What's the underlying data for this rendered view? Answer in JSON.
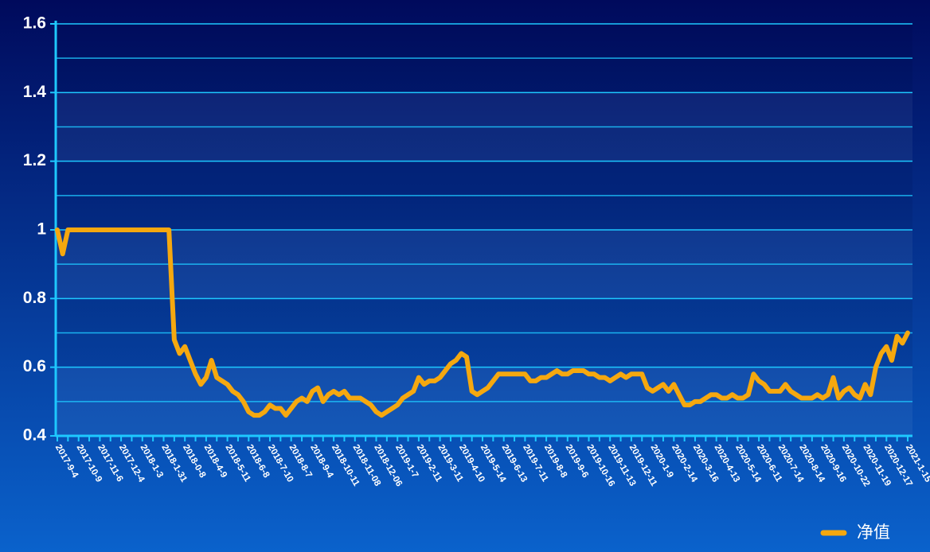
{
  "chart_data": {
    "type": "line",
    "categories": [
      "2017-9-4",
      null,
      null,
      null,
      "2017-10-9",
      null,
      null,
      null,
      "2017-11-6",
      null,
      null,
      null,
      "2017-12-4",
      null,
      null,
      null,
      "2018-1-3",
      null,
      null,
      null,
      "2018-1-31",
      null,
      null,
      null,
      "2018-0-8",
      null,
      null,
      null,
      "2018-4-9",
      null,
      null,
      null,
      "2018-5-11",
      null,
      null,
      null,
      "2018-6-8",
      null,
      null,
      null,
      "2018-7-10",
      null,
      null,
      null,
      "2018-8-7",
      null,
      null,
      null,
      "2018-9-4",
      null,
      null,
      null,
      "2018-10-11",
      null,
      null,
      null,
      "2018-11-08",
      null,
      null,
      null,
      "2018-12-06",
      null,
      null,
      null,
      "2019-1-7",
      null,
      null,
      null,
      "2019-2-11",
      null,
      null,
      null,
      "2019-3-11",
      null,
      null,
      null,
      "2019-4-10",
      null,
      null,
      null,
      "2019-5-14",
      null,
      null,
      null,
      "2019-6-13",
      null,
      null,
      null,
      "2019-7-11",
      null,
      null,
      null,
      "2019-8-8",
      null,
      null,
      null,
      "2019-9-6",
      null,
      null,
      null,
      "2019-10-16",
      null,
      null,
      null,
      "2019-11-13",
      null,
      null,
      null,
      "2019-12-11",
      null,
      null,
      null,
      "2020-1-9",
      null,
      null,
      null,
      "2020-2-14",
      null,
      null,
      null,
      "2020-3-16",
      null,
      null,
      null,
      "2020-4-13",
      null,
      null,
      null,
      "2020-5-14",
      null,
      null,
      null,
      "2020-6-11",
      null,
      null,
      null,
      "2020-7-14",
      null,
      null,
      null,
      "2020-8-14",
      null,
      null,
      null,
      "2020-9-16",
      null,
      null,
      null,
      "2020-10-22",
      null,
      null,
      null,
      "2020-11-19",
      null,
      null,
      null,
      "2020-12-17",
      null,
      null,
      null,
      "2021-1-15"
    ],
    "series": [
      {
        "name": "净值",
        "color": "#f5a80f",
        "values": [
          1.0,
          0.93,
          1.0,
          1.0,
          1.0,
          1.0,
          1.0,
          1.0,
          1.0,
          1.0,
          1.0,
          1.0,
          1.0,
          1.0,
          1.0,
          1.0,
          1.0,
          1.0,
          1.0,
          1.0,
          1.0,
          1.0,
          0.68,
          0.64,
          0.66,
          0.62,
          0.58,
          0.55,
          0.57,
          0.62,
          0.57,
          0.56,
          0.55,
          0.53,
          0.52,
          0.5,
          0.47,
          0.46,
          0.46,
          0.47,
          0.49,
          0.48,
          0.48,
          0.46,
          0.48,
          0.5,
          0.51,
          0.5,
          0.53,
          0.54,
          0.5,
          0.52,
          0.53,
          0.52,
          0.53,
          0.51,
          0.51,
          0.51,
          0.5,
          0.49,
          0.47,
          0.46,
          0.47,
          0.48,
          0.49,
          0.51,
          0.52,
          0.53,
          0.57,
          0.55,
          0.56,
          0.56,
          0.57,
          0.59,
          0.61,
          0.62,
          0.64,
          0.63,
          0.53,
          0.52,
          0.53,
          0.54,
          0.56,
          0.58,
          0.58,
          0.58,
          0.58,
          0.58,
          0.58,
          0.56,
          0.56,
          0.57,
          0.57,
          0.58,
          0.59,
          0.58,
          0.58,
          0.59,
          0.59,
          0.59,
          0.58,
          0.58,
          0.57,
          0.57,
          0.56,
          0.57,
          0.58,
          0.57,
          0.58,
          0.58,
          0.58,
          0.54,
          0.53,
          0.54,
          0.55,
          0.53,
          0.55,
          0.52,
          0.49,
          0.49,
          0.5,
          0.5,
          0.51,
          0.52,
          0.52,
          0.51,
          0.51,
          0.52,
          0.51,
          0.51,
          0.52,
          0.58,
          0.56,
          0.55,
          0.53,
          0.53,
          0.53,
          0.55,
          0.53,
          0.52,
          0.51,
          0.51,
          0.51,
          0.52,
          0.51,
          0.52,
          0.57,
          0.51,
          0.53,
          0.54,
          0.52,
          0.51,
          0.55,
          0.52,
          0.6,
          0.64,
          0.66,
          0.62,
          0.69,
          0.67,
          0.7
        ]
      }
    ],
    "ylim": [
      0.4,
      1.6
    ],
    "yticks": [
      0.4,
      0.6,
      0.8,
      1,
      1.2,
      1.4,
      1.6
    ],
    "minor_yticks": [
      0.5,
      0.7,
      0.9,
      1.1,
      1.3,
      1.5
    ],
    "grid": true,
    "legend": "bottom-right"
  }
}
